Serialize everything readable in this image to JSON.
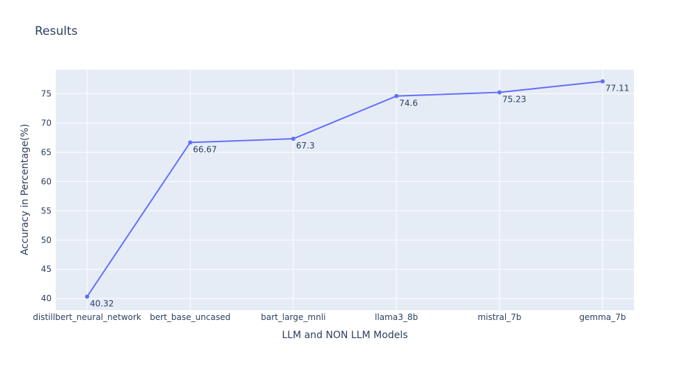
{
  "chart_data": {
    "type": "line",
    "title": "Results",
    "xlabel": "LLM and NON LLM Models",
    "ylabel": "Accuracy in Percentage(%)",
    "categories": [
      "distillbert_neural_network",
      "bert_base_uncased",
      "bart_large_mnli",
      "llama3_8b",
      "mistral_7b",
      "gemma_7b"
    ],
    "series": [
      {
        "values": [
          40.32,
          66.67,
          67.3,
          74.6,
          75.23,
          77.11
        ],
        "labels": [
          "40.32",
          "66.67",
          "67.3",
          "74.6",
          "75.23",
          "77.11"
        ]
      }
    ],
    "ylim": [
      38.0,
      79.1
    ],
    "yticks": [
      40,
      45,
      50,
      55,
      60,
      65,
      70,
      75
    ],
    "grid": true,
    "colors": {
      "line": "#636efa",
      "plot_bg": "#e5ecf6",
      "grid": "#ffffff",
      "text": "#2a3f5f"
    }
  }
}
